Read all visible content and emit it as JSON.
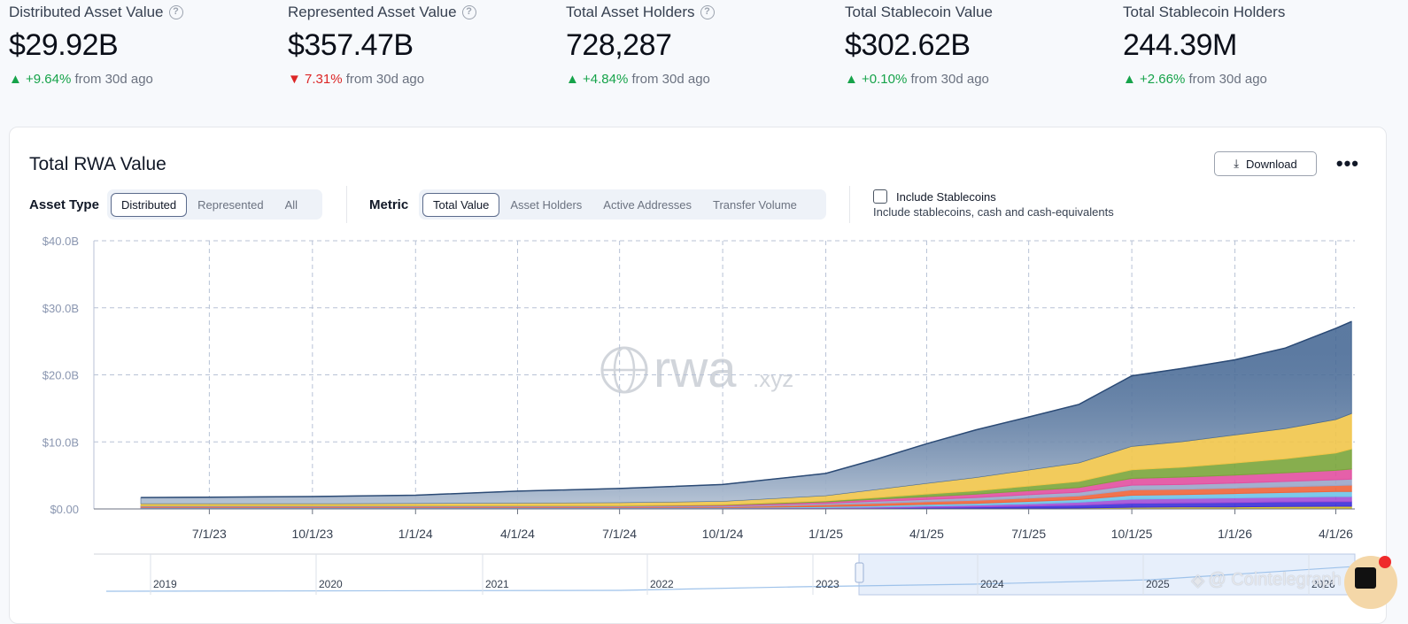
{
  "kpis": [
    {
      "label": "Distributed Asset Value",
      "help": true,
      "value": "$29.92B",
      "direction": "up",
      "change": "+9.64%",
      "from": "from 30d ago"
    },
    {
      "label": "Represented Asset Value",
      "help": true,
      "value": "$357.47B",
      "direction": "down",
      "change": "7.31%",
      "from": "from 30d ago"
    },
    {
      "label": "Total Asset Holders",
      "help": true,
      "value": "728,287",
      "direction": "up",
      "change": "+4.84%",
      "from": "from 30d ago"
    },
    {
      "label": "Total Stablecoin Value",
      "help": false,
      "value": "$302.62B",
      "direction": "up",
      "change": "+0.10%",
      "from": "from 30d ago"
    },
    {
      "label": "Total Stablecoin Holders",
      "help": false,
      "value": "244.39M",
      "direction": "up",
      "change": "+2.66%",
      "from": "from 30d ago"
    }
  ],
  "card": {
    "title": "Total RWA Value",
    "download_label": "Download",
    "more_icon": "more-icon",
    "download_icon": "download-icon"
  },
  "filters": {
    "asset_type_label": "Asset Type",
    "asset_type_options": [
      "Distributed",
      "Represented",
      "All"
    ],
    "asset_type_selected": "Distributed",
    "metric_label": "Metric",
    "metric_options": [
      "Total Value",
      "Asset Holders",
      "Active Addresses",
      "Transfer Volume"
    ],
    "metric_selected": "Total Value",
    "include_stablecoins_label": "Include Stablecoins",
    "include_stablecoins_sub": "Include stablecoins, cash and cash-equivalents",
    "include_stablecoins_checked": false
  },
  "watermark": {
    "main": "rwa",
    "suffix": ".xyz"
  },
  "overlay_watermark": "@ Cointelegraph",
  "chart_data": {
    "type": "area",
    "stacked": true,
    "ylim": [
      0,
      40
    ],
    "y_ticks": [
      "$0.00",
      "$10.0B",
      "$20.0B",
      "$30.0B",
      "$40.0B"
    ],
    "y_tick_values": [
      0,
      10,
      20,
      30,
      40
    ],
    "x_ticks": [
      "7/1/23",
      "10/1/23",
      "1/1/24",
      "4/1/24",
      "7/1/24",
      "10/1/24",
      "1/1/25",
      "4/1/25",
      "7/1/25",
      "10/1/25",
      "1/1/26",
      "4/1/26"
    ],
    "x": [
      "5/1/23",
      "7/1/23",
      "10/1/23",
      "1/1/24",
      "4/1/24",
      "7/1/24",
      "10/1/24",
      "1/1/25",
      "2/15/25",
      "4/1/25",
      "5/15/25",
      "7/1/25",
      "8/15/25",
      "10/1/25",
      "11/15/25",
      "1/1/26",
      "2/15/26",
      "4/1/26",
      "4/15/26"
    ],
    "grid": true,
    "legend": "none",
    "series": [
      {
        "color": "#d9c21a",
        "values": [
          0.05,
          0.05,
          0.05,
          0.05,
          0.05,
          0.05,
          0.05,
          0.05,
          0.05,
          0.08,
          0.1,
          0.12,
          0.15,
          0.25,
          0.3,
          0.3,
          0.35,
          0.4,
          0.4
        ]
      },
      {
        "color": "#3b2fd9",
        "values": [
          0.05,
          0.05,
          0.05,
          0.05,
          0.05,
          0.05,
          0.05,
          0.05,
          0.1,
          0.15,
          0.2,
          0.3,
          0.4,
          0.6,
          0.6,
          0.65,
          0.7,
          0.7,
          0.7
        ]
      },
      {
        "color": "#a24fd6",
        "values": [
          0.05,
          0.05,
          0.05,
          0.05,
          0.05,
          0.05,
          0.05,
          0.1,
          0.15,
          0.2,
          0.25,
          0.35,
          0.45,
          0.6,
          0.65,
          0.7,
          0.7,
          0.75,
          0.75
        ]
      },
      {
        "color": "#6ec3e8",
        "values": [
          0.05,
          0.05,
          0.05,
          0.05,
          0.05,
          0.05,
          0.05,
          0.15,
          0.2,
          0.25,
          0.3,
          0.35,
          0.4,
          0.6,
          0.6,
          0.65,
          0.7,
          0.75,
          0.75
        ]
      },
      {
        "color": "#f0643a",
        "values": [
          0.1,
          0.1,
          0.1,
          0.1,
          0.1,
          0.1,
          0.1,
          0.3,
          0.35,
          0.4,
          0.45,
          0.5,
          0.55,
          0.8,
          0.8,
          0.8,
          0.85,
          0.9,
          0.95
        ]
      },
      {
        "color": "#9aa6c9",
        "values": [
          0.1,
          0.1,
          0.1,
          0.1,
          0.1,
          0.1,
          0.15,
          0.2,
          0.3,
          0.35,
          0.4,
          0.5,
          0.55,
          0.7,
          0.7,
          0.75,
          0.8,
          0.85,
          0.9
        ]
      },
      {
        "color": "#e24fa0",
        "values": [
          0.05,
          0.05,
          0.05,
          0.05,
          0.05,
          0.05,
          0.1,
          0.2,
          0.3,
          0.4,
          0.5,
          0.6,
          0.7,
          1.0,
          1.1,
          1.2,
          1.3,
          1.4,
          1.5
        ]
      },
      {
        "color": "#7aa53b",
        "values": [
          0.05,
          0.05,
          0.05,
          0.05,
          0.05,
          0.05,
          0.1,
          0.15,
          0.25,
          0.4,
          0.5,
          0.7,
          0.9,
          1.3,
          1.5,
          1.8,
          2.1,
          2.6,
          3.0
        ]
      },
      {
        "color": "#f1c54a",
        "values": [
          0.3,
          0.3,
          0.3,
          0.35,
          0.4,
          0.45,
          0.5,
          0.8,
          1.2,
          1.6,
          2.0,
          2.4,
          2.8,
          3.5,
          3.8,
          4.2,
          4.5,
          5.0,
          5.3
        ]
      },
      {
        "color": "#3f6390",
        "values": [
          0.9,
          0.95,
          1.05,
          1.2,
          1.75,
          2.1,
          2.5,
          3.3,
          4.5,
          5.9,
          7.1,
          7.9,
          8.7,
          10.5,
          10.9,
          11.2,
          12.0,
          13.6,
          13.7
        ]
      }
    ]
  },
  "timeline": {
    "labels": [
      "2019",
      "2020",
      "2021",
      "2022",
      "2023",
      "2024",
      "2025",
      "2026"
    ]
  }
}
